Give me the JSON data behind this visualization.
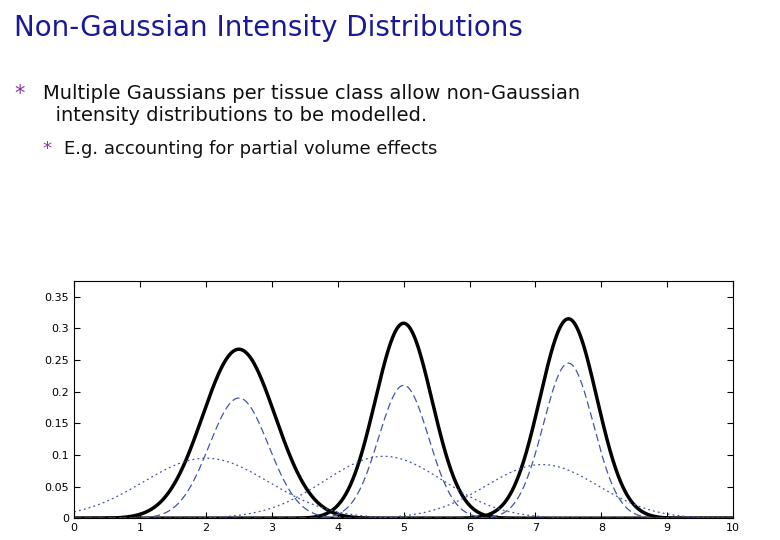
{
  "title": "Non-Gaussian Intensity Distributions",
  "title_color": "#1a1a99",
  "bullet1_star": "*",
  "bullet1_text": "Multiple Gaussians per tissue class allow non-Gaussian\n  intensity distributions to be modelled.",
  "bullet2_star": "*",
  "bullet2_text": "E.g. accounting for partial volume effects",
  "star_color": "#8833aa",
  "text_color": "#111111",
  "bg_color": "#ffffff",
  "xlim": [
    0,
    10
  ],
  "ylim": [
    0,
    0.375
  ],
  "yticks": [
    0,
    0.05,
    0.1,
    0.15,
    0.2,
    0.25,
    0.3,
    0.35
  ],
  "xticks": [
    0,
    1,
    2,
    3,
    4,
    5,
    6,
    7,
    8,
    9,
    10
  ],
  "gaussians_thick": [
    {
      "mu": 2.5,
      "sigma": 0.55,
      "amp": 0.267
    },
    {
      "mu": 5.0,
      "sigma": 0.43,
      "amp": 0.308
    },
    {
      "mu": 7.5,
      "sigma": 0.43,
      "amp": 0.315
    }
  ],
  "gaussians_dashed": [
    {
      "mu": 2.5,
      "sigma": 0.45,
      "amp": 0.19
    },
    {
      "mu": 5.0,
      "sigma": 0.38,
      "amp": 0.21
    },
    {
      "mu": 7.5,
      "sigma": 0.38,
      "amp": 0.245
    }
  ],
  "gaussians_dotted": [
    {
      "mu": 2.0,
      "sigma": 0.95,
      "amp": 0.095
    },
    {
      "mu": 4.7,
      "sigma": 0.9,
      "amp": 0.098
    },
    {
      "mu": 7.1,
      "sigma": 0.85,
      "amp": 0.085
    }
  ]
}
